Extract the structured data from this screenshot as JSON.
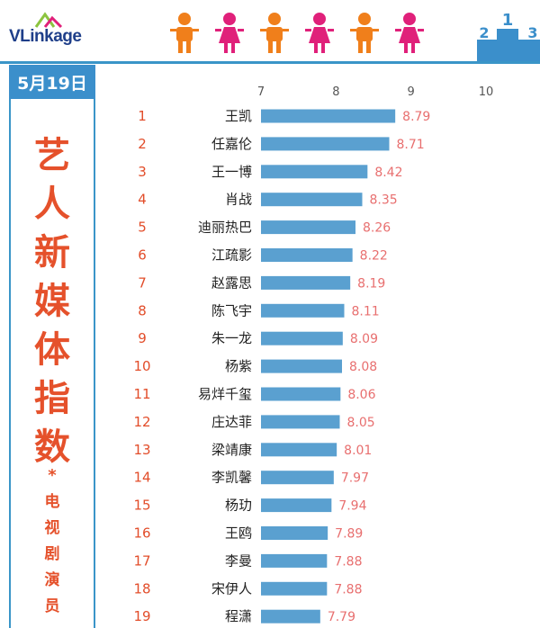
{
  "header": {
    "logo": "VLinkage",
    "podium_numbers": [
      "2",
      "1",
      "3"
    ]
  },
  "date_badge": "5月19日",
  "sidebar": {
    "title_chars": [
      "艺",
      "人",
      "新",
      "媒",
      "体",
      "指",
      "数"
    ],
    "asterisk": "*",
    "subtitle_chars": [
      "电",
      "视",
      "剧",
      "演",
      "员"
    ]
  },
  "colors": {
    "bar": "#5aa0d0",
    "value_label": "#e86f6f",
    "rank": "#e24d2a",
    "accent_blue": "#3b8fcb",
    "title": "#e5512b",
    "figure_orange": "#f07f1b",
    "figure_pink": "#e0207a"
  },
  "chart_data": {
    "type": "bar",
    "orientation": "horizontal",
    "x_ticks": [
      7,
      8,
      9,
      10
    ],
    "xlim": [
      7,
      10
    ],
    "grid": false,
    "rows": [
      {
        "rank": "1",
        "name": "王凯",
        "value": 8.79
      },
      {
        "rank": "2",
        "name": "任嘉伦",
        "value": 8.71
      },
      {
        "rank": "3",
        "name": "王一博",
        "value": 8.42
      },
      {
        "rank": "4",
        "name": "肖战",
        "value": 8.35
      },
      {
        "rank": "5",
        "name": "迪丽热巴",
        "value": 8.26
      },
      {
        "rank": "6",
        "name": "江疏影",
        "value": 8.22
      },
      {
        "rank": "7",
        "name": "赵露思",
        "value": 8.19
      },
      {
        "rank": "8",
        "name": "陈飞宇",
        "value": 8.11
      },
      {
        "rank": "9",
        "name": "朱一龙",
        "value": 8.09
      },
      {
        "rank": "10",
        "name": "杨紫",
        "value": 8.08
      },
      {
        "rank": "11",
        "name": "易烊千玺",
        "value": 8.06
      },
      {
        "rank": "12",
        "name": "庄达菲",
        "value": 8.05
      },
      {
        "rank": "13",
        "name": "梁靖康",
        "value": 8.01
      },
      {
        "rank": "14",
        "name": "李凯馨",
        "value": 7.97
      },
      {
        "rank": "15",
        "name": "杨玏",
        "value": 7.94
      },
      {
        "rank": "16",
        "name": "王鸥",
        "value": 7.89
      },
      {
        "rank": "17",
        "name": "李曼",
        "value": 7.88
      },
      {
        "rank": "18",
        "name": "宋伊人",
        "value": 7.88
      },
      {
        "rank": "19",
        "name": "程潇",
        "value": 7.79
      }
    ]
  }
}
